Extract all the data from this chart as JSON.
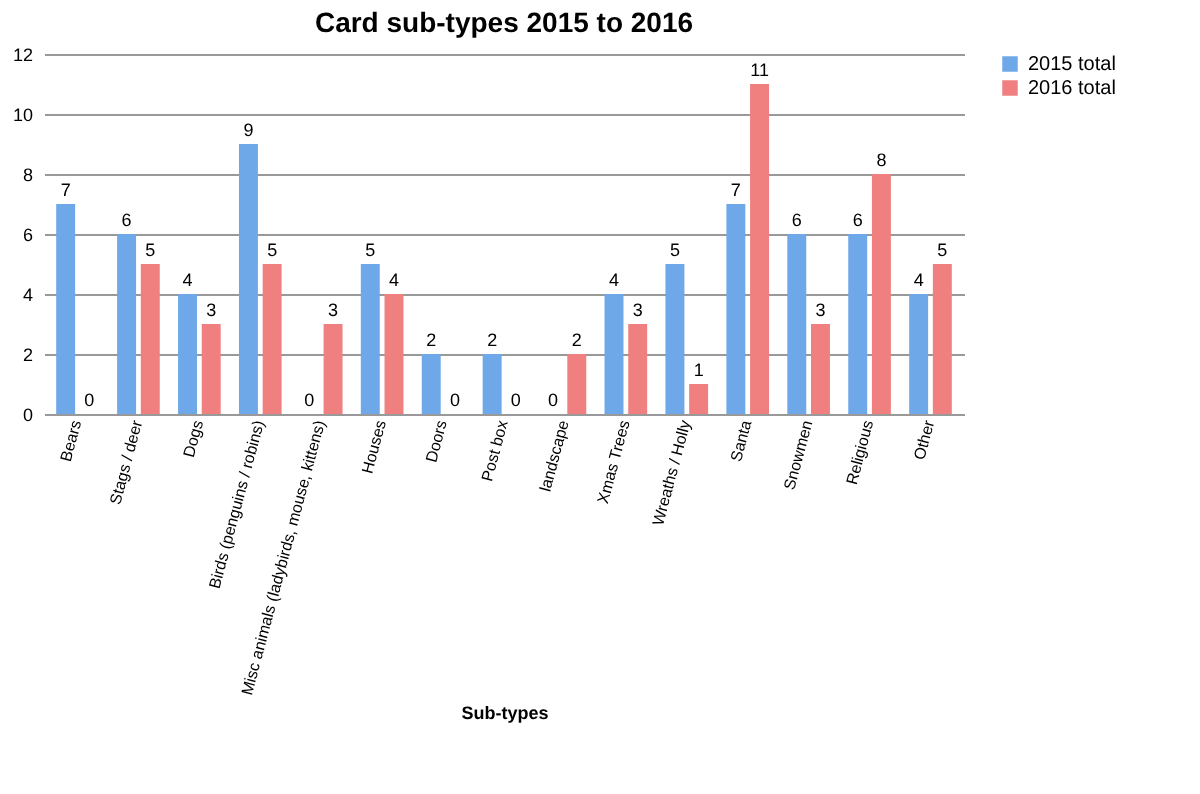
{
  "chart_data": {
    "type": "bar",
    "title": "Card sub-types 2015 to 2016",
    "xlabel": "Sub-types",
    "categories": [
      "Bears",
      "Stags / deer",
      "Dogs",
      "Birds (penguins / robins)",
      "Misc animals (ladybirds, mouse, kittens)",
      "Houses",
      "Doors",
      "Post box",
      "landscape",
      "Xmas Trees",
      "Wreaths / Holly",
      "Santa",
      "Snowmen",
      "Religious",
      "Other"
    ],
    "series": [
      {
        "name": "2015 total",
        "color": "#6fa8e8",
        "values": [
          7,
          6,
          4,
          9,
          0,
          5,
          2,
          2,
          0,
          4,
          5,
          7,
          6,
          6,
          4
        ]
      },
      {
        "name": "2016 total",
        "color": "#f08080",
        "values": [
          0,
          5,
          3,
          5,
          3,
          4,
          0,
          0,
          2,
          3,
          1,
          11,
          3,
          8,
          5
        ]
      }
    ],
    "ylim": [
      0,
      12
    ],
    "yticks": [
      0,
      2,
      4,
      6,
      8,
      10,
      12
    ],
    "grid": "y",
    "legend": "right",
    "data_labels": true
  }
}
